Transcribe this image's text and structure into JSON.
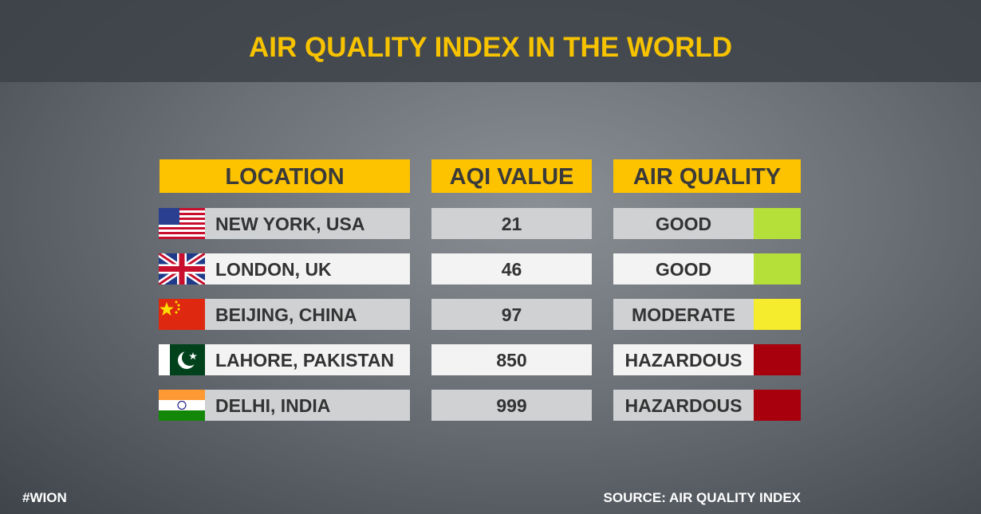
{
  "header": {
    "title": "AIR QUALITY INDEX IN THE WORLD"
  },
  "table": {
    "headers": [
      "LOCATION",
      "AQI VALUE",
      "AIR QUALITY"
    ],
    "rows": [
      {
        "location": "NEW YORK, USA",
        "aqi": 21,
        "quality": "GOOD",
        "color": "#b5e03a"
      },
      {
        "location": "LONDON, UK",
        "aqi": 46,
        "quality": "GOOD",
        "color": "#b5e03a"
      },
      {
        "location": "BEIJING, CHINA",
        "aqi": 97,
        "quality": "MODERATE",
        "color": "#f4ec2c"
      },
      {
        "location": "LAHORE, PAKISTAN",
        "aqi": 850,
        "quality": "HAZARDOUS",
        "color": "#a8000c"
      },
      {
        "location": "DELHI, INDIA",
        "aqi": 999,
        "quality": "HAZARDOUS",
        "color": "#a8000c"
      }
    ]
  },
  "footer": {
    "tag": "#WION",
    "source": "SOURCE: AIR QUALITY INDEX"
  }
}
